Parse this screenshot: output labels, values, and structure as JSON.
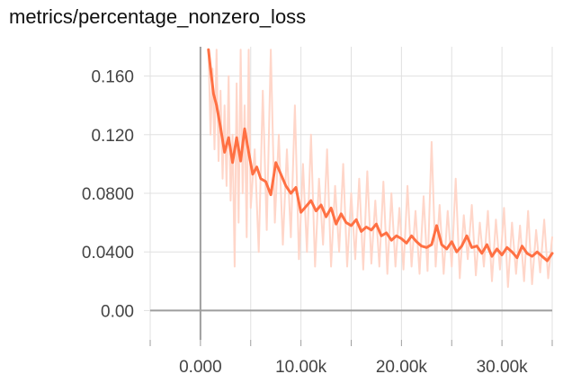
{
  "chart_data": {
    "type": "line",
    "title": "metrics/percentage_nonzero_loss",
    "xlabel": "",
    "ylabel": "",
    "xlim": [
      -5000,
      35000
    ],
    "ylim": [
      -0.02,
      0.18
    ],
    "grid": true,
    "x_ticks": [
      {
        "value": 0,
        "label": "0.000"
      },
      {
        "value": 10000,
        "label": "10.00k"
      },
      {
        "value": 20000,
        "label": "20.00k"
      },
      {
        "value": 30000,
        "label": "30.00k"
      }
    ],
    "y_ticks": [
      {
        "value": 0.0,
        "label": "0.00"
      },
      {
        "value": 0.04,
        "label": "0.0400"
      },
      {
        "value": 0.08,
        "label": "0.0800"
      },
      {
        "value": 0.12,
        "label": "0.120"
      },
      {
        "value": 0.16,
        "label": "0.160"
      }
    ],
    "colors": {
      "smoothed": "#ff7043",
      "raw": "#ffd6c9",
      "axis": "#9e9e9e",
      "grid": "#e0e0e0"
    },
    "series": [
      {
        "style": "smoothed",
        "x": [
          800,
          1000,
          1300,
          1600,
          2000,
          2400,
          2800,
          3200,
          3600,
          4000,
          4400,
          4800,
          5200,
          5600,
          6000,
          6500,
          7000,
          7500,
          8000,
          8500,
          9000,
          9500,
          10000,
          10500,
          11000,
          11500,
          12000,
          12500,
          13000,
          13500,
          14000,
          14500,
          15000,
          15500,
          16000,
          16500,
          17000,
          17500,
          18000,
          18500,
          19000,
          19500,
          20000,
          20500,
          21000,
          21500,
          22000,
          22500,
          23000,
          23500,
          24000,
          24500,
          25000,
          25500,
          26000,
          26500,
          27000,
          27500,
          28000,
          28500,
          29000,
          29500,
          30000,
          30500,
          31000,
          31500,
          32000,
          32500,
          33000,
          33500,
          34000,
          34500,
          35000
        ],
        "y": [
          0.178,
          0.165,
          0.148,
          0.14,
          0.125,
          0.108,
          0.118,
          0.101,
          0.118,
          0.102,
          0.124,
          0.108,
          0.093,
          0.098,
          0.09,
          0.088,
          0.079,
          0.101,
          0.093,
          0.085,
          0.08,
          0.084,
          0.067,
          0.071,
          0.075,
          0.068,
          0.072,
          0.064,
          0.07,
          0.059,
          0.066,
          0.06,
          0.058,
          0.062,
          0.054,
          0.057,
          0.055,
          0.059,
          0.051,
          0.053,
          0.048,
          0.051,
          0.049,
          0.046,
          0.051,
          0.047,
          0.044,
          0.043,
          0.045,
          0.058,
          0.045,
          0.042,
          0.047,
          0.04,
          0.044,
          0.051,
          0.043,
          0.044,
          0.039,
          0.045,
          0.037,
          0.042,
          0.038,
          0.043,
          0.04,
          0.036,
          0.044,
          0.039,
          0.037,
          0.04,
          0.037,
          0.034,
          0.039
        ]
      },
      {
        "style": "raw",
        "x": [
          800,
          1000,
          1200,
          1400,
          1600,
          1800,
          2000,
          2200,
          2400,
          2600,
          2800,
          3000,
          3200,
          3400,
          3600,
          3800,
          4000,
          4200,
          4400,
          4600,
          4800,
          5000,
          5400,
          5800,
          6200,
          6600,
          7000,
          7400,
          7800,
          8200,
          8600,
          9000,
          9400,
          9800,
          10200,
          10600,
          11000,
          11400,
          11800,
          12200,
          12600,
          13000,
          13400,
          13800,
          14200,
          14600,
          15000,
          15400,
          15800,
          16200,
          16600,
          17000,
          17400,
          17800,
          18200,
          18600,
          19000,
          19400,
          19800,
          20200,
          20600,
          21000,
          21400,
          21800,
          22200,
          22600,
          23000,
          23400,
          23800,
          24200,
          24600,
          25000,
          25400,
          25800,
          26200,
          26600,
          27000,
          27400,
          27800,
          28200,
          28600,
          29000,
          29400,
          29800,
          30200,
          30600,
          31000,
          31400,
          31800,
          32200,
          32600,
          33000,
          33400,
          33800,
          34200,
          34600,
          35000
        ],
        "y": [
          0.178,
          0.12,
          0.165,
          0.11,
          0.178,
          0.102,
          0.15,
          0.09,
          0.14,
          0.085,
          0.16,
          0.075,
          0.12,
          0.03,
          0.155,
          0.06,
          0.178,
          0.08,
          0.14,
          0.05,
          0.178,
          0.07,
          0.11,
          0.04,
          0.15,
          0.055,
          0.178,
          0.06,
          0.12,
          0.045,
          0.11,
          0.05,
          0.14,
          0.035,
          0.1,
          0.04,
          0.12,
          0.03,
          0.09,
          0.045,
          0.11,
          0.03,
          0.085,
          0.04,
          0.1,
          0.03,
          0.08,
          0.035,
          0.09,
          0.028,
          0.095,
          0.032,
          0.075,
          0.03,
          0.088,
          0.025,
          0.08,
          0.03,
          0.07,
          0.028,
          0.085,
          0.03,
          0.068,
          0.025,
          0.078,
          0.027,
          0.115,
          0.03,
          0.072,
          0.025,
          0.068,
          0.03,
          0.09,
          0.022,
          0.065,
          0.035,
          0.072,
          0.024,
          0.06,
          0.03,
          0.068,
          0.02,
          0.062,
          0.028,
          0.07,
          0.016,
          0.06,
          0.025,
          0.058,
          0.02,
          0.068,
          0.018,
          0.055,
          0.026,
          0.062,
          0.022,
          0.05
        ]
      }
    ]
  }
}
